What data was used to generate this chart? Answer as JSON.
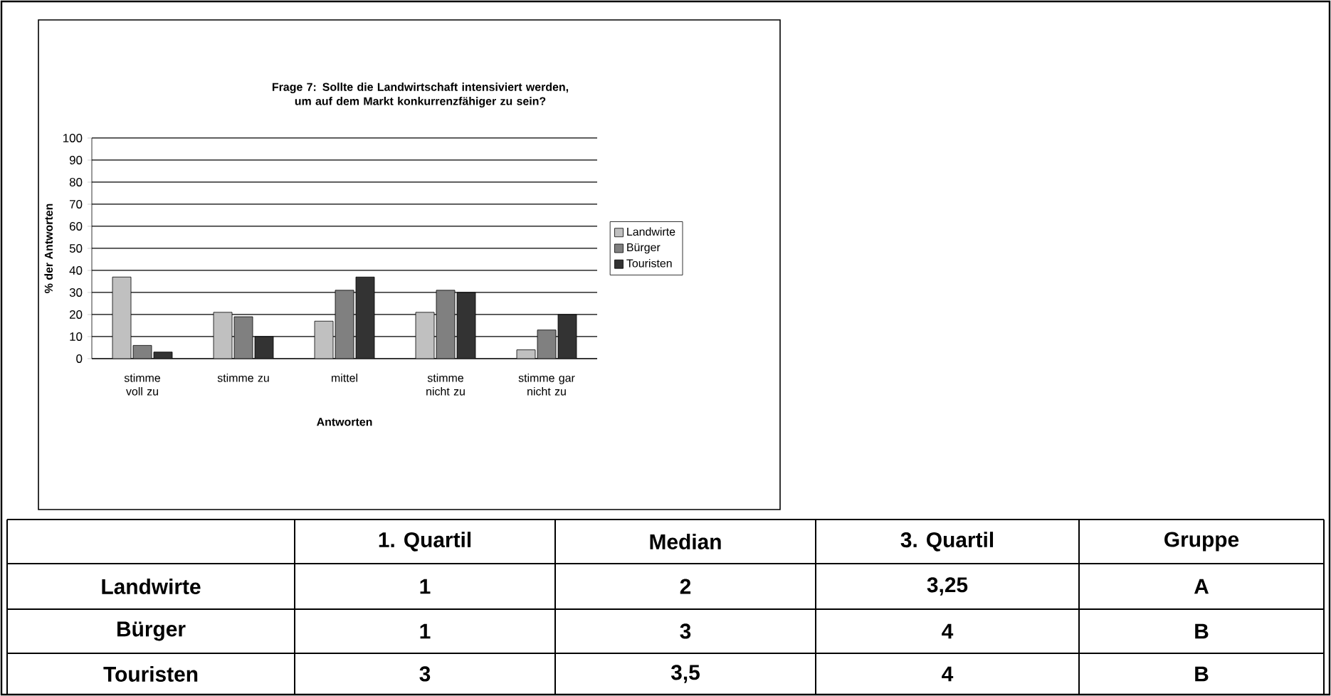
{
  "chart_data": {
    "type": "bar",
    "title": "Frage 7: Sollte die Landwirtschaft intensiviert werden, um auf dem Markt konkurrenzfähiger zu sein?",
    "xlabel": "Antworten",
    "ylabel": "% der Antworten",
    "categories": [
      "stimme voll zu",
      "stimme zu",
      "mittel",
      "stimme nicht zu",
      "stimme gar nicht zu"
    ],
    "series": [
      {
        "name": "Landwirte",
        "color": "#c0c0c0",
        "values": [
          37,
          21,
          17,
          21,
          4
        ]
      },
      {
        "name": "Bürger",
        "color": "#808080",
        "values": [
          6,
          19,
          31,
          31,
          13
        ]
      },
      {
        "name": "Touristen",
        "color": "#333333",
        "values": [
          3,
          10,
          37,
          30,
          20
        ]
      }
    ],
    "ylim": [
      0,
      100
    ],
    "yticks": [
      0,
      10,
      20,
      30,
      40,
      50,
      60,
      70,
      80,
      90,
      100
    ],
    "grid": "y",
    "legend": "right",
    "annotations": [
      "1. Quartil",
      "Median",
      "3. Quartil",
      "Gruppe",
      "Landwirte",
      "1",
      "2",
      "3,25",
      "A",
      "Bürger",
      "1",
      "3",
      "4",
      "B",
      "Touristen",
      "3",
      "3,5",
      "4",
      "B"
    ]
  }
}
